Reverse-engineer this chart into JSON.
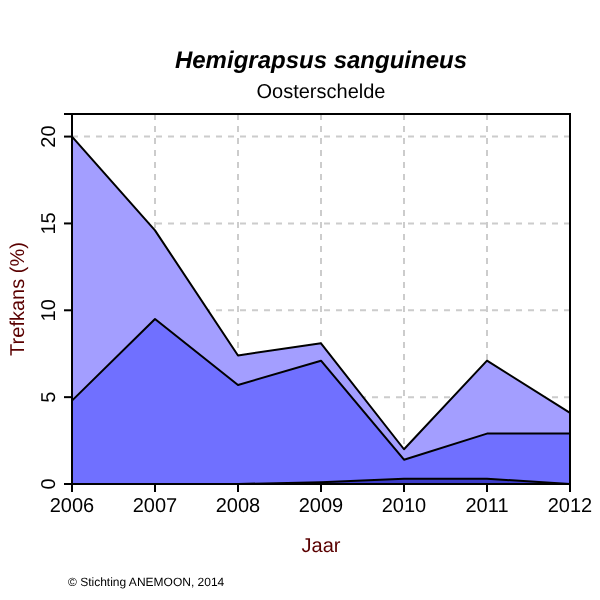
{
  "chart_data": {
    "type": "area",
    "title": "Hemigrapsus sanguineus",
    "subtitle": "Oosterschelde",
    "xlabel": "Jaar",
    "ylabel": "Trefkans (%)",
    "x": [
      2006,
      2007,
      2008,
      2009,
      2010,
      2011,
      2012
    ],
    "stacked": true,
    "series": [
      {
        "color": "#3c3cc8",
        "values": [
          0,
          0,
          0,
          0.1,
          0.3,
          0.3,
          0
        ]
      },
      {
        "color": "#7070ff",
        "values": [
          4.8,
          9.5,
          5.7,
          7.0,
          1.1,
          2.6,
          2.9
        ]
      },
      {
        "color": "#a39eff",
        "values": [
          15.2,
          5.1,
          1.7,
          1.0,
          0.6,
          4.2,
          1.2
        ]
      }
    ],
    "xlim": [
      2006,
      2012
    ],
    "xticks": [
      2006,
      2007,
      2008,
      2009,
      2010,
      2011,
      2012
    ],
    "ylim": [
      0,
      21.3
    ],
    "yticks": [
      0,
      5,
      10,
      15,
      20
    ],
    "grid": true,
    "annotations": [
      "© Stichting ANEMOON, 2014"
    ]
  }
}
